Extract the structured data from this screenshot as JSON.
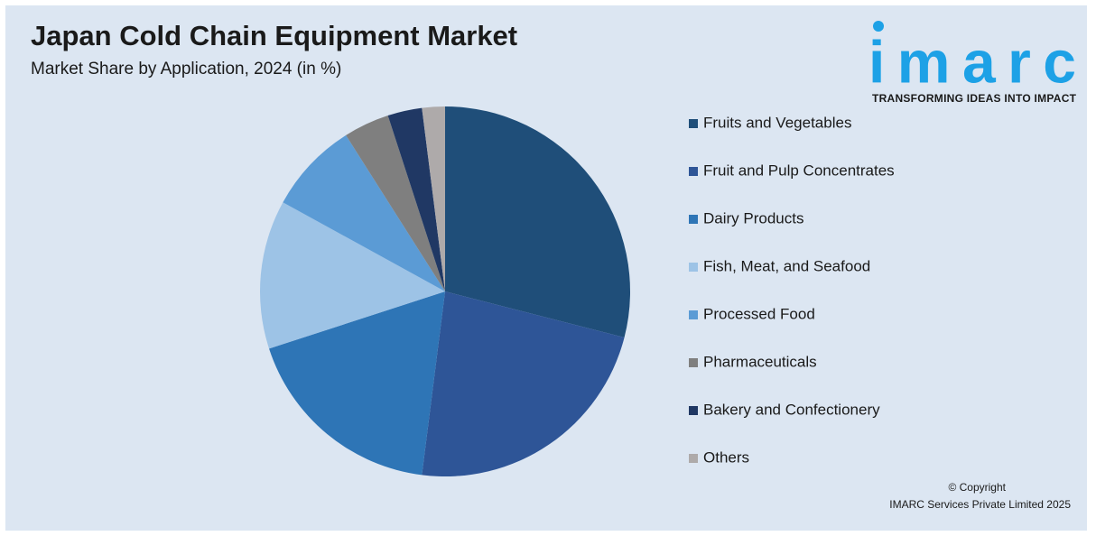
{
  "chart_data": {
    "type": "pie",
    "title": "Japan Cold Chain Equipment Market",
    "subtitle": "Market Share by Application, 2024 (in %)",
    "categories": [
      "Fruits and Vegetables",
      "Fruit and Pulp Concentrates",
      "Dairy Products",
      "Fish, Meat, and Seafood",
      "Processed Food",
      "Pharmaceuticals",
      "Bakery and Confectionery",
      "Others"
    ],
    "values": [
      29,
      23,
      18,
      13,
      8,
      4,
      3,
      2
    ],
    "colors": [
      "#1f4e79",
      "#2e5597",
      "#2e75b6",
      "#9dc3e6",
      "#5b9bd5",
      "#7f7f7f",
      "#203864",
      "#aeaaaa"
    ],
    "legend": "right"
  },
  "logo": {
    "name": "imarc",
    "tagline": "TRANSFORMING IDEAS INTO IMPACT"
  },
  "copyright": {
    "line1": "© Copyright",
    "line2": "IMARC Services Private Limited 2025"
  }
}
